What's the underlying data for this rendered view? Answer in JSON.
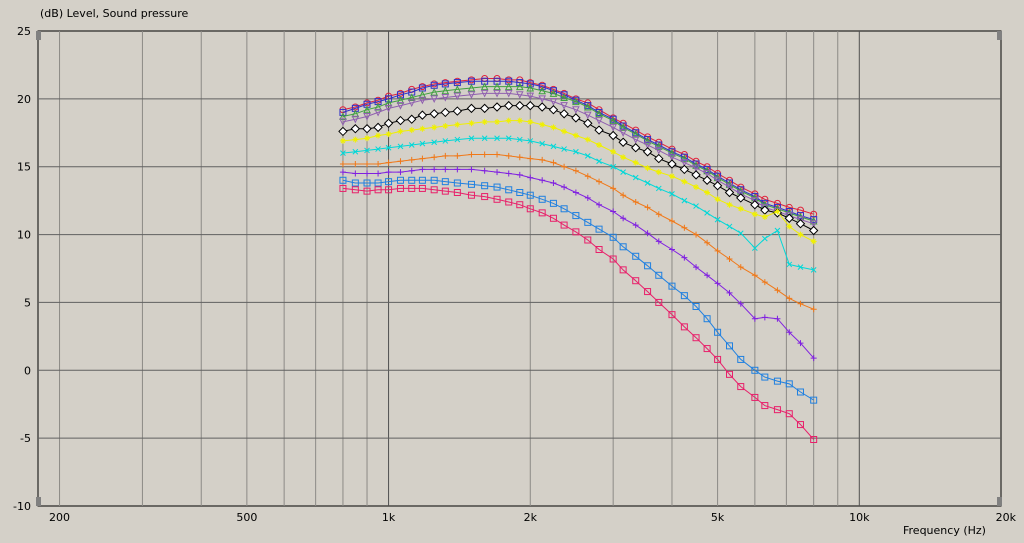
{
  "chart_data": {
    "type": "line",
    "title": "(dB)  Level, Sound pressure",
    "xlabel": "Frequency  (Hz)",
    "ylabel": "(dB)",
    "x_scale": "log",
    "xlim": [
      180,
      20000
    ],
    "ylim": [
      -10,
      25
    ],
    "grid": true,
    "x_ticks": [
      {
        "value": 200,
        "label": "200"
      },
      {
        "value": 500,
        "label": "500"
      },
      {
        "value": 1000,
        "label": "1k"
      },
      {
        "value": 2000,
        "label": "2k"
      },
      {
        "value": 5000,
        "label": "5k"
      },
      {
        "value": 10000,
        "label": "10k"
      },
      {
        "value": 20000,
        "label": "20k"
      }
    ],
    "y_ticks": [
      25,
      20,
      15,
      10,
      5,
      0,
      -5,
      -10
    ],
    "x": [
      800,
      850,
      900,
      950,
      1000,
      1060,
      1120,
      1180,
      1250,
      1320,
      1400,
      1500,
      1600,
      1700,
      1800,
      1900,
      2000,
      2120,
      2240,
      2360,
      2500,
      2650,
      2800,
      3000,
      3150,
      3350,
      3550,
      3750,
      4000,
      4250,
      4500,
      4750,
      5000,
      5300,
      5600,
      6000,
      6300,
      6700,
      7100,
      7500,
      8000
    ],
    "series": [
      {
        "color": "#e0203a",
        "marker": "circle",
        "values": [
          19.2,
          19.4,
          19.7,
          19.9,
          20.2,
          20.4,
          20.7,
          20.9,
          21.1,
          21.2,
          21.3,
          21.4,
          21.5,
          21.5,
          21.4,
          21.4,
          21.2,
          21.0,
          20.7,
          20.4,
          20.0,
          19.7,
          19.2,
          18.6,
          18.2,
          17.7,
          17.2,
          16.8,
          16.3,
          15.9,
          15.4,
          15.0,
          14.5,
          14.0,
          13.5,
          13.0,
          12.6,
          12.3,
          12.0,
          11.8,
          11.5
        ]
      },
      {
        "color": "#3030c8",
        "marker": "square",
        "values": [
          19.0,
          19.3,
          19.6,
          19.8,
          20.0,
          20.3,
          20.5,
          20.8,
          21.0,
          21.1,
          21.2,
          21.3,
          21.3,
          21.3,
          21.3,
          21.2,
          21.1,
          20.9,
          20.6,
          20.3,
          19.9,
          19.5,
          19.0,
          18.5,
          18.0,
          17.5,
          17.0,
          16.6,
          16.1,
          15.7,
          15.2,
          14.8,
          14.3,
          13.8,
          13.3,
          12.8,
          12.3,
          12.0,
          11.7,
          11.4,
          11.1
        ]
      },
      {
        "color": "#40a040",
        "marker": "triangle-up",
        "values": [
          18.7,
          18.9,
          19.2,
          19.4,
          19.7,
          19.9,
          20.1,
          20.3,
          20.5,
          20.6,
          20.7,
          20.8,
          20.9,
          20.9,
          20.9,
          20.9,
          20.8,
          20.6,
          20.4,
          20.1,
          19.8,
          19.4,
          18.9,
          18.4,
          17.9,
          17.4,
          16.9,
          16.5,
          16.0,
          15.6,
          15.1,
          14.7,
          14.2,
          13.7,
          13.2,
          12.7,
          12.2,
          11.9,
          11.6,
          11.3,
          11.0
        ]
      },
      {
        "color": "#9060b0",
        "marker": "triangle-down",
        "values": [
          18.3,
          18.5,
          18.7,
          19.0,
          19.3,
          19.5,
          19.7,
          19.9,
          20.0,
          20.1,
          20.2,
          20.3,
          20.4,
          20.4,
          20.4,
          20.3,
          20.2,
          20.0,
          19.8,
          19.5,
          19.2,
          18.8,
          18.4,
          17.9,
          17.5,
          17.0,
          16.6,
          16.2,
          15.7,
          15.3,
          14.9,
          14.5,
          14.0,
          13.5,
          13.0,
          12.5,
          12.0,
          11.7,
          11.4,
          11.1,
          10.8
        ]
      },
      {
        "color": "#000000",
        "marker": "diamond",
        "values": [
          17.6,
          17.8,
          17.8,
          17.9,
          18.2,
          18.4,
          18.5,
          18.8,
          18.9,
          19.0,
          19.1,
          19.3,
          19.3,
          19.4,
          19.5,
          19.5,
          19.5,
          19.4,
          19.2,
          18.9,
          18.6,
          18.2,
          17.7,
          17.3,
          16.8,
          16.4,
          16.1,
          15.6,
          15.2,
          14.8,
          14.4,
          14.0,
          13.6,
          13.1,
          12.7,
          12.2,
          11.8,
          11.6,
          11.2,
          10.8,
          10.3
        ]
      },
      {
        "color": "#f0f000",
        "marker": "star",
        "values": [
          16.9,
          17.0,
          17.1,
          17.3,
          17.4,
          17.6,
          17.7,
          17.8,
          17.9,
          18.0,
          18.1,
          18.2,
          18.3,
          18.3,
          18.4,
          18.4,
          18.3,
          18.1,
          17.9,
          17.6,
          17.3,
          17.0,
          16.6,
          16.1,
          15.7,
          15.3,
          14.9,
          14.6,
          14.3,
          13.9,
          13.5,
          13.1,
          12.6,
          12.2,
          11.9,
          11.5,
          11.3,
          11.7,
          10.6,
          10.0,
          9.5
        ]
      },
      {
        "color": "#00d8d8",
        "marker": "cross",
        "values": [
          16.0,
          16.1,
          16.2,
          16.3,
          16.4,
          16.5,
          16.6,
          16.7,
          16.8,
          16.9,
          17.0,
          17.1,
          17.1,
          17.1,
          17.1,
          17.0,
          16.9,
          16.7,
          16.5,
          16.3,
          16.1,
          15.8,
          15.4,
          15.0,
          14.6,
          14.2,
          13.8,
          13.4,
          13.0,
          12.5,
          12.1,
          11.6,
          11.1,
          10.6,
          10.1,
          9.0,
          9.7,
          10.3,
          7.8,
          7.6,
          7.4
        ]
      },
      {
        "color": "#f07818",
        "marker": "plus",
        "values": [
          15.2,
          15.2,
          15.2,
          15.2,
          15.3,
          15.4,
          15.5,
          15.6,
          15.7,
          15.8,
          15.8,
          15.9,
          15.9,
          15.9,
          15.8,
          15.7,
          15.6,
          15.5,
          15.3,
          15.0,
          14.7,
          14.3,
          13.9,
          13.4,
          12.9,
          12.4,
          12.0,
          11.5,
          11.0,
          10.5,
          10.0,
          9.4,
          8.8,
          8.2,
          7.6,
          7.0,
          6.5,
          5.9,
          5.3,
          4.9,
          4.5
        ]
      },
      {
        "color": "#8020e0",
        "marker": "plus",
        "values": [
          14.6,
          14.5,
          14.5,
          14.5,
          14.6,
          14.6,
          14.7,
          14.8,
          14.8,
          14.8,
          14.8,
          14.8,
          14.7,
          14.6,
          14.5,
          14.4,
          14.2,
          14.0,
          13.8,
          13.5,
          13.1,
          12.7,
          12.2,
          11.7,
          11.2,
          10.7,
          10.1,
          9.5,
          8.9,
          8.3,
          7.6,
          7.0,
          6.4,
          5.7,
          4.9,
          3.8,
          3.9,
          3.8,
          2.8,
          2.0,
          0.9
        ]
      },
      {
        "color": "#2080e0",
        "marker": "square",
        "values": [
          14.0,
          13.8,
          13.8,
          13.8,
          13.9,
          14.0,
          14.0,
          14.0,
          14.0,
          13.9,
          13.8,
          13.7,
          13.6,
          13.5,
          13.3,
          13.1,
          12.9,
          12.6,
          12.3,
          11.9,
          11.4,
          10.9,
          10.4,
          9.8,
          9.1,
          8.4,
          7.7,
          7.0,
          6.2,
          5.5,
          4.7,
          3.8,
          2.8,
          1.8,
          0.8,
          0.0,
          -0.5,
          -0.8,
          -1.0,
          -1.6,
          -2.2
        ]
      },
      {
        "color": "#e8206a",
        "marker": "square",
        "values": [
          13.4,
          13.3,
          13.2,
          13.3,
          13.3,
          13.4,
          13.4,
          13.4,
          13.3,
          13.2,
          13.1,
          12.9,
          12.8,
          12.6,
          12.4,
          12.2,
          11.9,
          11.6,
          11.2,
          10.7,
          10.2,
          9.6,
          8.9,
          8.2,
          7.4,
          6.6,
          5.8,
          5.0,
          4.1,
          3.2,
          2.4,
          1.6,
          0.8,
          -0.3,
          -1.2,
          -2.0,
          -2.6,
          -2.9,
          -3.2,
          -4.0,
          -5.1
        ]
      }
    ]
  }
}
